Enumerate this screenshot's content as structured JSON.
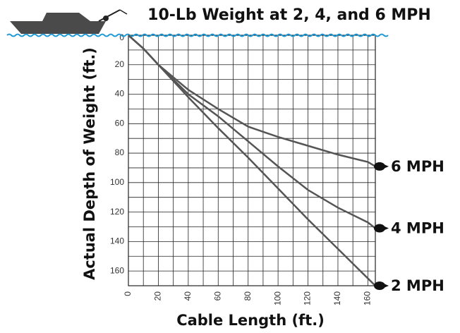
{
  "chart_data": {
    "type": "line",
    "title": "10-Lb Weight at 2, 4, and 6 MPH",
    "x_label": "Cable Length (ft.)",
    "y_label": "Actual Depth of Weight (ft.)",
    "x": [
      0,
      10,
      20,
      40,
      60,
      80,
      100,
      120,
      140,
      160,
      165
    ],
    "series": [
      {
        "name": "6 MPH",
        "color": "#555555",
        "values": [
          0,
          9,
          20,
          37,
          50,
          62,
          69,
          75,
          81,
          86,
          89
        ]
      },
      {
        "name": "4 MPH",
        "color": "#555555",
        "values": [
          0,
          9,
          20,
          40,
          55,
          72,
          89,
          105,
          117,
          127,
          131
        ]
      },
      {
        "name": "2 MPH",
        "color": "#555555",
        "values": [
          0,
          9,
          20,
          42,
          63,
          83,
          104,
          125,
          145,
          165,
          170
        ]
      }
    ],
    "xlim": [
      0,
      165
    ],
    "xticks": [
      0,
      20,
      40,
      60,
      80,
      100,
      120,
      140,
      160
    ],
    "ylim": [
      0,
      170
    ],
    "yticks": [
      0,
      20,
      40,
      60,
      80,
      100,
      120,
      140,
      160
    ],
    "y_inverted": true,
    "grid": true
  }
}
